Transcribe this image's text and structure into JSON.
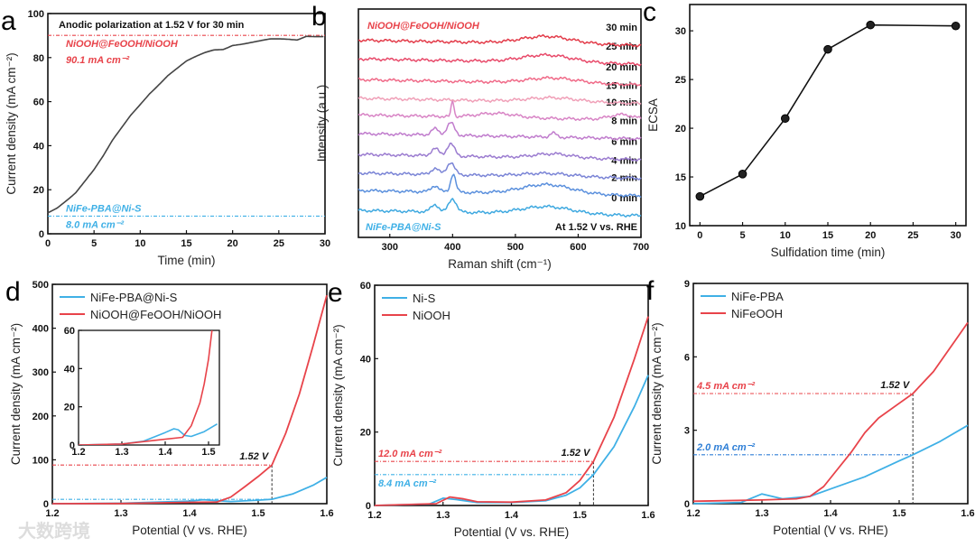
{
  "watermark": "大数跨境",
  "chart_data": [
    {
      "id": "a",
      "type": "line",
      "letter": "a",
      "title": "Anodic polarization at 1.52 V for 30 min",
      "xlabel": "Time (min)",
      "ylabel": "Current density (mA cm⁻²)",
      "xlim": [
        0,
        30
      ],
      "ylim": [
        0,
        100
      ],
      "xticks": [
        0,
        5,
        10,
        15,
        20,
        25,
        30
      ],
      "yticks": [
        0,
        20,
        40,
        60,
        80,
        100
      ],
      "series": [
        {
          "name": "current",
          "color": "#444444",
          "x": [
            0,
            1,
            2,
            3,
            4,
            5,
            6,
            7,
            8,
            9,
            10,
            11,
            12,
            13,
            14,
            15,
            16,
            17,
            18,
            19,
            20,
            21,
            22,
            23,
            24,
            25,
            26,
            27,
            28,
            29,
            30
          ],
          "y": [
            9.5,
            12,
            15.5,
            19,
            24,
            29,
            35,
            42,
            48,
            54,
            59,
            64,
            68,
            72,
            75,
            78,
            80,
            82,
            83.5,
            84,
            86,
            86.5,
            87,
            87.5,
            88,
            88,
            88,
            88,
            90,
            90,
            90
          ]
        }
      ],
      "guides": [
        {
          "y": 90.1,
          "color": "#e8434a",
          "label1": "NiOOH@FeOOH/NiOOH",
          "label2": "90.1 mA cm⁻²"
        },
        {
          "y": 8.0,
          "color": "#3fb0e6",
          "label1": "NiFe-PBA@Ni-S",
          "label2": "8.0 mA cm⁻²"
        }
      ]
    },
    {
      "id": "b",
      "type": "line",
      "letter": "b",
      "xlabel": "Raman shift (cm⁻¹)",
      "ylabel": "Intensity (a.u.)",
      "xlim": [
        250,
        700
      ],
      "ylim": [
        0,
        11
      ],
      "xticks": [
        300,
        400,
        500,
        600,
        700
      ],
      "top_label": "NiOOH@FeOOH/NiOOH",
      "bottom_label": "NiFe-PBA@Ni-S",
      "condition": "At 1.52 V vs. RHE",
      "series": [
        {
          "name": "0 min",
          "color": "#3fa9e0",
          "offset": 1.3,
          "peaks": [
            [
              372,
              0.35,
              6
            ],
            [
              400,
              0.65,
              6
            ],
            [
              550,
              0.35,
              40
            ]
          ]
        },
        {
          "name": "2 min",
          "color": "#5b90dd",
          "offset": 2.26,
          "peaks": [
            [
              372,
              0.3,
              6
            ],
            [
              401,
              0.9,
              4
            ],
            [
              550,
              0.45,
              40
            ]
          ]
        },
        {
          "name": "4 min",
          "color": "#7a84d6",
          "offset": 3.1,
          "peaks": [
            [
              372,
              0.3,
              6
            ],
            [
              397,
              0.6,
              6
            ],
            [
              550,
              0.15,
              40
            ]
          ]
        },
        {
          "name": "6 min",
          "color": "#9b7cd0",
          "offset": 4.0,
          "peaks": [
            [
              372,
              0.35,
              6
            ],
            [
              397,
              0.6,
              6
            ],
            [
              560,
              0.2,
              30
            ]
          ]
        },
        {
          "name": "8 min",
          "color": "#c07ccd",
          "offset": 5.0,
          "peaks": [
            [
              372,
              0.3,
              6
            ],
            [
              397,
              0.6,
              6
            ],
            [
              560,
              0.2,
              5
            ]
          ]
        },
        {
          "name": "10 min",
          "color": "#d884c5",
          "offset": 5.9,
          "peaks": [
            [
              400,
              0.8,
              2
            ],
            [
              470,
              0.2,
              30
            ],
            [
              670,
              0.25,
              20
            ]
          ]
        },
        {
          "name": "15 min",
          "color": "#f0a0b8",
          "offset": 6.7,
          "peaks": [
            [
              560,
              0.2,
              40
            ]
          ]
        },
        {
          "name": "20 min",
          "color": "#f06a88",
          "offset": 7.6,
          "peaks": [
            [
              560,
              0.25,
              40
            ]
          ]
        },
        {
          "name": "25 min",
          "color": "#e84a6a",
          "offset": 8.6,
          "peaks": [
            [
              550,
              0.35,
              40
            ]
          ]
        },
        {
          "name": "30 min",
          "color": "#e33c4a",
          "offset": 9.5,
          "peaks": [
            [
              550,
              0.35,
              40
            ]
          ]
        }
      ]
    },
    {
      "id": "c",
      "type": "line",
      "letter": "c",
      "xlabel": "Sulfidation time (min)",
      "ylabel": "ECSA",
      "xlim": [
        -1.2,
        31.2
      ],
      "ylim": [
        10,
        32.7
      ],
      "xticks": [
        0,
        5,
        10,
        15,
        20,
        25,
        30
      ],
      "yticks": [
        10,
        15,
        20,
        25,
        30
      ],
      "series": [
        {
          "name": "ECSA",
          "color": "#111111",
          "markers": true,
          "x": [
            0,
            5,
            10,
            15,
            20,
            30
          ],
          "y": [
            13.0,
            15.3,
            21.0,
            28.1,
            30.6,
            30.5
          ]
        }
      ]
    },
    {
      "id": "d",
      "type": "line",
      "letter": "d",
      "xlabel": "Potential (V vs. RHE)",
      "ylabel": "Current density (mA cm⁻²)",
      "xlim": [
        1.2,
        1.6
      ],
      "ylim": [
        0,
        500
      ],
      "xticks": [
        1.2,
        1.3,
        1.4,
        1.5,
        1.6
      ],
      "yticks": [
        0,
        100,
        200,
        300,
        400,
        500
      ],
      "series": [
        {
          "name": "NiFe-PBA@Ni-S",
          "color": "#3fb0e6",
          "x": [
            1.2,
            1.3,
            1.4,
            1.42,
            1.46,
            1.5,
            1.52,
            1.55,
            1.58,
            1.6
          ],
          "y": [
            0,
            1,
            6,
            9,
            5,
            8,
            10,
            22,
            42,
            60
          ]
        },
        {
          "name": "NiOOH@FeOOH/NiOOH",
          "color": "#e8434a",
          "x": [
            1.2,
            1.3,
            1.4,
            1.44,
            1.46,
            1.48,
            1.5,
            1.52,
            1.54,
            1.56,
            1.58,
            1.6
          ],
          "y": [
            0,
            0.5,
            3,
            4,
            15,
            38,
            62,
            88,
            160,
            250,
            360,
            475
          ]
        }
      ],
      "marker_v": 1.52,
      "marker_label": "1.52 V",
      "guides": [
        {
          "y": 88,
          "color": "#e8434a"
        },
        {
          "y": 10,
          "color": "#3fb0e6"
        }
      ],
      "inset": {
        "xlim": [
          1.2,
          1.525
        ],
        "ylim": [
          0,
          60
        ],
        "xticks": [
          1.2,
          1.3,
          1.4,
          1.5
        ],
        "yticks": [
          0,
          20,
          40,
          60
        ],
        "series": [
          {
            "name": "NiFe-PBA@Ni-S",
            "color": "#3fb0e6",
            "x": [
              1.2,
              1.3,
              1.35,
              1.4,
              1.42,
              1.43,
              1.445,
              1.46,
              1.49,
              1.52
            ],
            "y": [
              0,
              0.5,
              2,
              6.5,
              8.5,
              8,
              5,
              4.5,
              7,
              11
            ]
          },
          {
            "name": "NiOOH@FeOOH/NiOOH",
            "color": "#e8434a",
            "x": [
              1.2,
              1.3,
              1.4,
              1.44,
              1.46,
              1.48,
              1.49,
              1.5,
              1.508
            ],
            "y": [
              0,
              0.5,
              3,
              4,
              10,
              22,
              32,
              45,
              60
            ]
          }
        ]
      }
    },
    {
      "id": "e",
      "type": "line",
      "letter": "e",
      "xlabel": "Potential (V vs. RHE)",
      "ylabel": "Current density (mA cm⁻²)",
      "xlim": [
        1.2,
        1.6
      ],
      "ylim": [
        0,
        60
      ],
      "xticks": [
        1.2,
        1.3,
        1.4,
        1.5,
        1.6
      ],
      "yticks": [
        0,
        20,
        40,
        60
      ],
      "series": [
        {
          "name": "Ni-S",
          "color": "#3fb0e6",
          "x": [
            1.2,
            1.28,
            1.3,
            1.32,
            1.35,
            1.4,
            1.45,
            1.48,
            1.5,
            1.52,
            1.55,
            1.58,
            1.6
          ],
          "y": [
            0,
            0.4,
            2.0,
            1.6,
            0.8,
            0.8,
            1.3,
            2.8,
            4.8,
            8.4,
            16,
            27,
            35.5
          ]
        },
        {
          "name": "NiOOH",
          "color": "#e8434a",
          "x": [
            1.2,
            1.29,
            1.31,
            1.33,
            1.35,
            1.4,
            1.45,
            1.48,
            1.5,
            1.52,
            1.55,
            1.58,
            1.6
          ],
          "y": [
            0,
            0.5,
            2.3,
            1.8,
            1.0,
            0.9,
            1.5,
            3.5,
            6.8,
            12.0,
            24,
            40,
            51.5
          ]
        }
      ],
      "marker_v": 1.52,
      "marker_label": "1.52 V",
      "guides": [
        {
          "y": 12.0,
          "color": "#e8434a",
          "label": "12.0 mA cm⁻²",
          "pos": "above"
        },
        {
          "y": 8.4,
          "color": "#3fb0e6",
          "label": "8.4 mA cm⁻²",
          "pos": "below"
        }
      ]
    },
    {
      "id": "f",
      "type": "line",
      "letter": "f",
      "xlabel": "Potential (V vs. RHE)",
      "ylabel": "Current density (mA cm⁻²)",
      "xlim": [
        1.2,
        1.6
      ],
      "ylim": [
        0,
        9
      ],
      "xticks": [
        1.2,
        1.3,
        1.4,
        1.5,
        1.6
      ],
      "yticks": [
        0,
        3,
        6,
        9
      ],
      "series": [
        {
          "name": "NiFe-PBA",
          "color": "#3fb0e6",
          "x": [
            1.2,
            1.27,
            1.3,
            1.33,
            1.37,
            1.4,
            1.45,
            1.5,
            1.52,
            1.56,
            1.6
          ],
          "y": [
            0,
            0.05,
            0.4,
            0.2,
            0.3,
            0.6,
            1.1,
            1.75,
            2.0,
            2.55,
            3.2
          ]
        },
        {
          "name": "NiFeOOH",
          "color": "#e8434a",
          "x": [
            1.2,
            1.3,
            1.35,
            1.37,
            1.39,
            1.41,
            1.43,
            1.45,
            1.47,
            1.5,
            1.52,
            1.55,
            1.58,
            1.6
          ],
          "y": [
            0.1,
            0.15,
            0.2,
            0.3,
            0.7,
            1.4,
            2.1,
            2.9,
            3.5,
            4.1,
            4.5,
            5.4,
            6.6,
            7.4
          ]
        }
      ],
      "marker_v": 1.52,
      "marker_label": "1.52 V",
      "guides": [
        {
          "y": 4.5,
          "color": "#e8434a",
          "label": "4.5 mA cm⁻²",
          "pos": "above"
        },
        {
          "y": 2.0,
          "color": "#2f7fd6",
          "label": "2.0 mA cm⁻²",
          "pos": "above"
        }
      ]
    }
  ]
}
